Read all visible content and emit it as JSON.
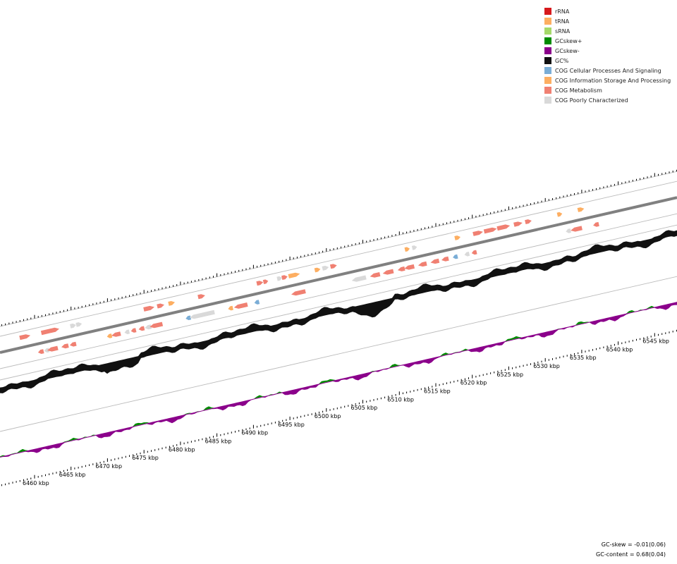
{
  "legend": {
    "items": [
      {
        "label": "rRNA",
        "color": "#d7191c"
      },
      {
        "label": "tRNA",
        "color": "#fdae61"
      },
      {
        "label": "sRNA",
        "color": "#a6d96a"
      },
      {
        "label": "GCskew+",
        "color": "#008b00"
      },
      {
        "label": "GCskew-",
        "color": "#8b008b"
      },
      {
        "label": "GC%",
        "color": "#111111"
      },
      {
        "label": "COG Cellular Processes And Signaling",
        "color": "#7aadd6"
      },
      {
        "label": "COG Information Storage And Processing",
        "color": "#fdae61"
      },
      {
        "label": "COG Metabolism",
        "color": "#f08072"
      },
      {
        "label": "COG Poorly Characterized",
        "color": "#d9d9d9"
      }
    ]
  },
  "axis": {
    "unit": "kbp",
    "labels": [
      "6460 kbp",
      "6465 kbp",
      "6470 kbp",
      "6475 kbp",
      "6480 kbp",
      "6485 kbp",
      "6490 kbp",
      "6495 kbp",
      "6500 kbp",
      "6505 kbp",
      "6510 kbp",
      "6515 kbp",
      "6520 kbp",
      "6525 kbp",
      "6530 kbp",
      "6535 kbp",
      "6540 kbp",
      "6545 kbp"
    ],
    "start_kbp": 6460,
    "step_kbp": 5
  },
  "stats": {
    "gc_skew": "GC-skew = -0.01(0.06)",
    "gc_content": "GC-content = 0.68(0.04)"
  },
  "colors": {
    "backbone": "#808080",
    "gc": "#111111",
    "skew_pos": "#008b00",
    "skew_neg": "#8b008b",
    "track_line": "#bbbbbb",
    "tick": "#000000"
  },
  "features": {
    "forward": [
      {
        "kbp": 6459.0,
        "cog": "metabolism",
        "len": 1.5
      },
      {
        "kbp": 6462.2,
        "cog": "metabolism",
        "len": 2.0
      },
      {
        "kbp": 6463.1,
        "cog": "metabolism",
        "len": 1.2
      },
      {
        "kbp": 6465.6,
        "cog": "unknown",
        "len": 0.8
      },
      {
        "kbp": 6466.4,
        "cog": "unknown",
        "len": 0.8
      },
      {
        "kbp": 6476.0,
        "cog": "metabolism",
        "len": 1.5
      },
      {
        "kbp": 6477.6,
        "cog": "metabolism",
        "len": 1.0
      },
      {
        "kbp": 6479.1,
        "cog": "info",
        "len": 0.9
      },
      {
        "kbp": 6483.2,
        "cog": "metabolism",
        "len": 1.0
      },
      {
        "kbp": 6491.2,
        "cog": "metabolism",
        "len": 0.9
      },
      {
        "kbp": 6492.0,
        "cog": "metabolism",
        "len": 0.6
      },
      {
        "kbp": 6493.9,
        "cog": "unknown",
        "len": 0.7
      },
      {
        "kbp": 6494.6,
        "cog": "metabolism",
        "len": 0.8
      },
      {
        "kbp": 6495.9,
        "cog": "info",
        "len": 1.6
      },
      {
        "kbp": 6499.1,
        "cog": "info",
        "len": 0.8
      },
      {
        "kbp": 6500.2,
        "cog": "unknown",
        "len": 0.9
      },
      {
        "kbp": 6501.3,
        "cog": "metabolism",
        "len": 0.9
      },
      {
        "kbp": 6511.4,
        "cog": "info",
        "len": 0.6
      },
      {
        "kbp": 6512.4,
        "cog": "unknown",
        "len": 0.6
      },
      {
        "kbp": 6518.3,
        "cog": "info",
        "len": 0.8
      },
      {
        "kbp": 6521.1,
        "cog": "metabolism",
        "len": 1.4
      },
      {
        "kbp": 6522.8,
        "cog": "metabolism",
        "len": 1.8
      },
      {
        "kbp": 6524.6,
        "cog": "metabolism",
        "len": 1.8
      },
      {
        "kbp": 6526.6,
        "cog": "metabolism",
        "len": 1.2
      },
      {
        "kbp": 6528.0,
        "cog": "metabolism",
        "len": 0.9
      },
      {
        "kbp": 6532.3,
        "cog": "info",
        "len": 0.7
      },
      {
        "kbp": 6535.2,
        "cog": "info",
        "len": 0.9
      }
    ],
    "reverse": [
      {
        "kbp": 6460.6,
        "cog": "metabolism",
        "len": 0.8
      },
      {
        "kbp": 6461.4,
        "cog": "unknown",
        "len": 0.6
      },
      {
        "kbp": 6462.2,
        "cog": "metabolism",
        "len": 1.5
      },
      {
        "kbp": 6463.9,
        "cog": "metabolism",
        "len": 1.0
      },
      {
        "kbp": 6465.0,
        "cog": "metabolism",
        "len": 0.9
      },
      {
        "kbp": 6470.0,
        "cog": "info",
        "len": 0.6
      },
      {
        "kbp": 6470.9,
        "cog": "metabolism",
        "len": 1.3
      },
      {
        "kbp": 6472.4,
        "cog": "unknown",
        "len": 0.6
      },
      {
        "kbp": 6473.3,
        "cog": "metabolism",
        "len": 0.7
      },
      {
        "kbp": 6474.4,
        "cog": "metabolism",
        "len": 0.8
      },
      {
        "kbp": 6475.3,
        "cog": "unknown",
        "len": 0.9
      },
      {
        "kbp": 6476.4,
        "cog": "metabolism",
        "len": 1.8
      },
      {
        "kbp": 6480.8,
        "cog": "cellular",
        "len": 0.7
      },
      {
        "kbp": 6482.7,
        "cog": "unknown",
        "len": 3.5
      },
      {
        "kbp": 6486.6,
        "cog": "info",
        "len": 0.6
      },
      {
        "kbp": 6488.0,
        "cog": "metabolism",
        "len": 1.9
      },
      {
        "kbp": 6490.2,
        "cog": "cellular",
        "len": 0.5
      },
      {
        "kbp": 6495.9,
        "cog": "metabolism",
        "len": 2.0
      },
      {
        "kbp": 6504.2,
        "cog": "unknown",
        "len": 2.0
      },
      {
        "kbp": 6506.4,
        "cog": "metabolism",
        "len": 1.4
      },
      {
        "kbp": 6508.2,
        "cog": "metabolism",
        "len": 1.5
      },
      {
        "kbp": 6510.0,
        "cog": "metabolism",
        "len": 1.0
      },
      {
        "kbp": 6511.1,
        "cog": "metabolism",
        "len": 1.4
      },
      {
        "kbp": 6512.9,
        "cog": "metabolism",
        "len": 1.2
      },
      {
        "kbp": 6514.6,
        "cog": "metabolism",
        "len": 1.2
      },
      {
        "kbp": 6516.0,
        "cog": "metabolism",
        "len": 1.0
      },
      {
        "kbp": 6517.4,
        "cog": "cellular",
        "len": 0.6
      },
      {
        "kbp": 6519.0,
        "cog": "unknown",
        "len": 0.6
      },
      {
        "kbp": 6520.0,
        "cog": "metabolism",
        "len": 0.7
      },
      {
        "kbp": 6532.9,
        "cog": "unknown",
        "len": 0.6
      },
      {
        "kbp": 6534.0,
        "cog": "metabolism",
        "len": 1.6
      },
      {
        "kbp": 6536.7,
        "cog": "metabolism",
        "len": 0.8
      }
    ]
  }
}
